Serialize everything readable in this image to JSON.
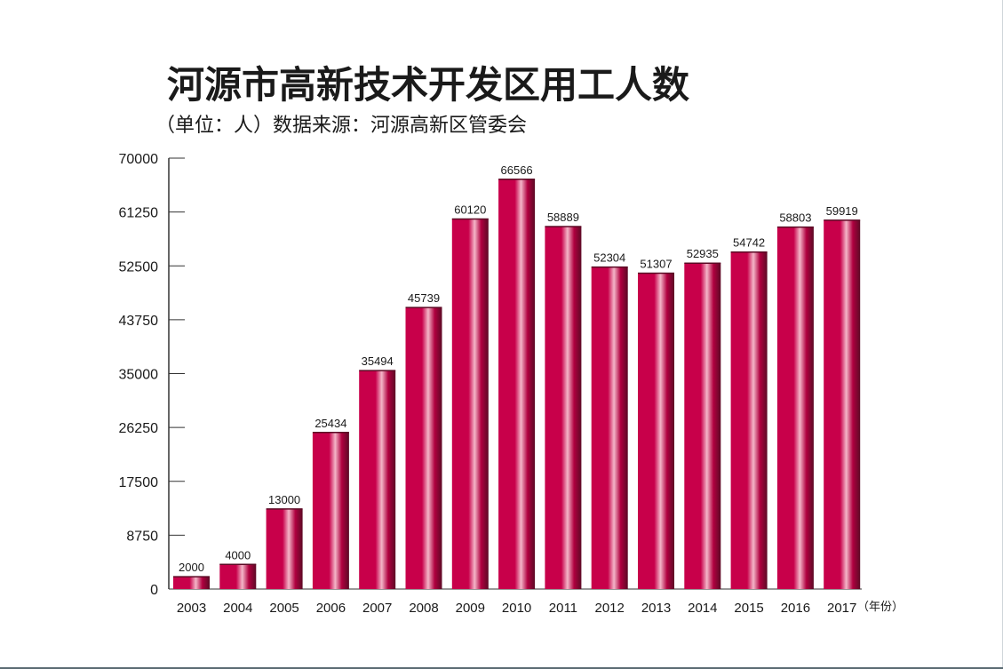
{
  "chart_data": {
    "type": "bar",
    "title": "河源市高新技术开发区用工人数",
    "subtitle": "（单位：人）数据来源：河源高新区管委会",
    "x_unit_label": "（年份）",
    "categories": [
      "2003",
      "2004",
      "2005",
      "2006",
      "2007",
      "2008",
      "2009",
      "2010",
      "2011",
      "2012",
      "2013",
      "2014",
      "2015",
      "2016",
      "2017"
    ],
    "values": [
      2000,
      4000,
      13000,
      25434,
      35494,
      45739,
      60120,
      66566,
      58889,
      52304,
      51307,
      52935,
      54742,
      58803,
      59919
    ],
    "ylim": [
      0,
      70000
    ],
    "yticks": [
      0,
      8750,
      17500,
      26250,
      35000,
      43750,
      52500,
      61250,
      70000
    ],
    "grid": false,
    "legend": "none",
    "colors": {
      "bar_dark": "#a8003a",
      "bar_mid": "#c8004a",
      "bar_light": "#f4b6c8",
      "bar_edge": "#5c0a25",
      "text": "#1a1a1a",
      "axis": "#333333"
    }
  }
}
